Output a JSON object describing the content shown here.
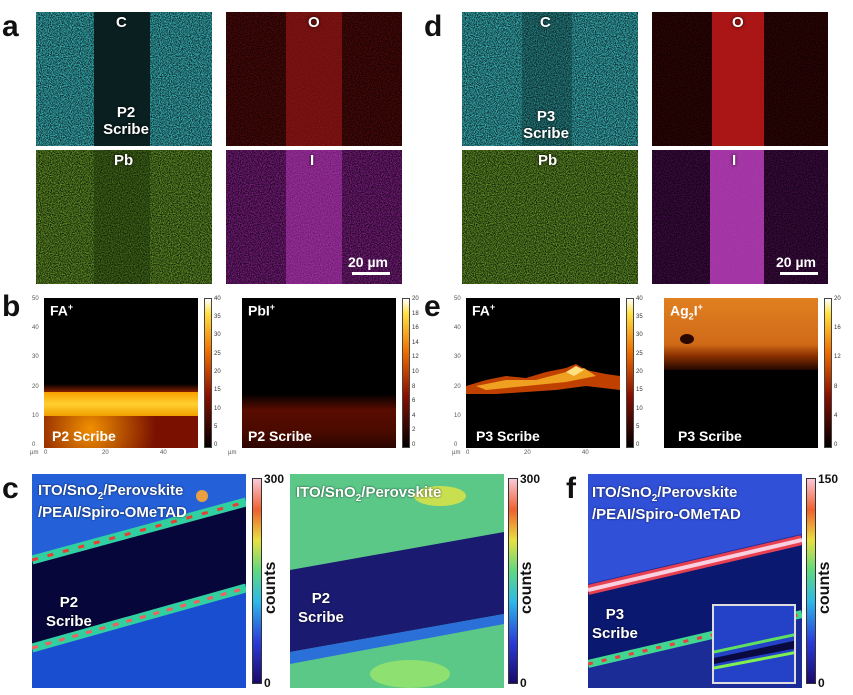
{
  "panel_letters": {
    "a": "a",
    "b": "b",
    "c": "c",
    "d": "d",
    "e": "e",
    "f": "f"
  },
  "panel_a": {
    "c_label": "C",
    "o_label": "O",
    "pb_label": "Pb",
    "i_label": "I",
    "scribe_label_1": "P2",
    "scribe_label_2": "Scribe",
    "scale_label": "20 µm",
    "colors": {
      "C": "#3fc9cf",
      "O": "#d42a2a",
      "Pb": "#8ec63a",
      "I": "#c23cc8"
    }
  },
  "panel_d": {
    "c_label": "C",
    "o_label": "O",
    "pb_label": "Pb",
    "i_label": "I",
    "scribe_label_1": "P3",
    "scribe_label_2": "Scribe",
    "scale_label": "20 µm"
  },
  "panel_b": {
    "left_ion": "FA",
    "left_ion_sup": "+",
    "right_ion": "PbI",
    "right_ion_sup": "+",
    "left_caption": "P2 Scribe",
    "right_caption": "P2 Scribe",
    "y_ticks": [
      "50",
      "40",
      "30",
      "20",
      "10",
      "0"
    ],
    "x_ticks": [
      "0",
      "20",
      "40"
    ],
    "unit": "µm",
    "left_cbar_ticks": [
      "40",
      "35",
      "30",
      "25",
      "20",
      "15",
      "10",
      "5",
      "0"
    ],
    "right_cbar_ticks": [
      "20",
      "18",
      "16",
      "14",
      "12",
      "10",
      "8",
      "6",
      "4",
      "2",
      "0"
    ]
  },
  "panel_e": {
    "left_ion": "FA",
    "left_ion_sup": "+",
    "right_ion_pre": "Ag",
    "right_ion_sub": "2",
    "right_ion_post": "I",
    "right_ion_sup": "+",
    "left_caption": "P3 Scribe",
    "right_caption": "P3 Scribe",
    "y_ticks": [
      "50",
      "40",
      "30",
      "20",
      "10",
      "0"
    ],
    "x_ticks": [
      "0",
      "20",
      "40"
    ],
    "unit": "µm",
    "left_cbar_ticks": [
      "40",
      "35",
      "30",
      "25",
      "20",
      "15",
      "10",
      "5",
      "0"
    ],
    "right_cbar_ticks": [
      "20",
      "16",
      "12",
      "8",
      "4",
      "0"
    ]
  },
  "panel_c": {
    "left_title_1a": "ITO/SnO",
    "left_title_1sub": "2",
    "left_title_1b": "/Perovskite",
    "left_title_2": "/PEAI/Spiro-OMeTAD",
    "right_title_a": "ITO/SnO",
    "right_title_sub": "2",
    "right_title_b": "/Perovskite",
    "left_scribe_1": "P2",
    "left_scribe_2": "Scribe",
    "right_scribe_1": "P2",
    "right_scribe_2": "Scribe",
    "cbar_max": "300",
    "cbar_min": "0",
    "cbar_label": "counts"
  },
  "panel_f": {
    "title_1a": "ITO/SnO",
    "title_1sub": "2",
    "title_1b": "/Perovskite",
    "title_2": "/PEAI/Spiro-OMeTAD",
    "scribe_1": "P3",
    "scribe_2": "Scribe",
    "cbar_max": "150",
    "cbar_min": "0",
    "cbar_label": "counts"
  }
}
